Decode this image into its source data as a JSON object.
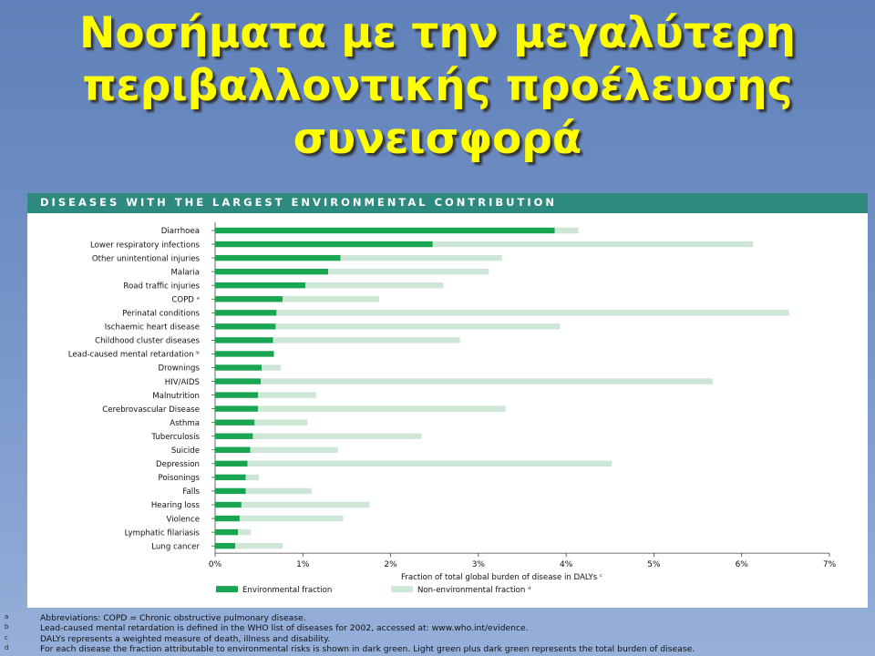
{
  "slide": {
    "title_lines": [
      "Νοσήματα με την μεγαλύτερη",
      "περιβαλλοντικής προέλευσης",
      "συνεισφορά"
    ]
  },
  "chart_data": {
    "type": "bar",
    "orientation": "horizontal",
    "stacked": true,
    "title": "DISEASES WITH THE LARGEST ENVIRONMENTAL CONTRIBUTION",
    "categories": [
      "Diarrhoea",
      "Lower respiratory infections",
      "Other unintentional injuries",
      "Malaria",
      "Road traffic injuries",
      "COPD ᵃ",
      "Perinatal conditions",
      "Ischaemic heart disease",
      "Childhood cluster diseases",
      "Lead-caused mental retardation ᵇ",
      "Drownings",
      "HIV/AIDS",
      "Malnutrition",
      "Cerebrovascular Disease",
      "Asthma",
      "Tuberculosis",
      "Suicide",
      "Depression",
      "Poisonings",
      "Falls",
      "Hearing loss",
      "Violence",
      "Lymphatic filariasis",
      "Lung cancer"
    ],
    "series": [
      {
        "name": "Environmental fraction",
        "color": "#1aa553",
        "values": [
          3.87,
          2.48,
          1.43,
          1.29,
          1.03,
          0.77,
          0.7,
          0.69,
          0.66,
          0.67,
          0.53,
          0.52,
          0.49,
          0.49,
          0.45,
          0.43,
          0.4,
          0.37,
          0.35,
          0.35,
          0.3,
          0.28,
          0.26,
          0.23
        ]
      },
      {
        "name": "Non-environmental fraction",
        "color": "#cde6d6",
        "values": [
          0.27,
          3.65,
          1.84,
          1.83,
          1.57,
          1.1,
          5.84,
          3.24,
          2.13,
          0.0,
          0.22,
          5.15,
          0.66,
          2.82,
          0.6,
          1.92,
          1.0,
          4.15,
          0.15,
          0.75,
          1.46,
          1.18,
          0.15,
          0.54
        ]
      }
    ],
    "xlim": [
      0,
      7
    ],
    "xticks": [
      "0%",
      "1%",
      "2%",
      "3%",
      "4%",
      "5%",
      "6%",
      "7%"
    ],
    "xlabel": "Fraction of total global burden of disease in DALYs ᶜ",
    "legend": [
      {
        "label": "Environmental fraction",
        "color": "#1aa553"
      },
      {
        "label": "Non-environmental fraction ᵈ",
        "color": "#cde6d6"
      }
    ],
    "legend_position": "bottom",
    "grid": false
  },
  "footnotes": [
    {
      "letter": "a",
      "text": "Abbreviations: COPD = Chronic obstructive pulmonary disease."
    },
    {
      "letter": "b",
      "text": "Lead-caused mental retardation is defined in the WHO list of diseases for 2002, accessed at: www.who.int/evidence."
    },
    {
      "letter": "c",
      "text": "DALYs represents a weighted measure of death, illness and disability."
    },
    {
      "letter": "d",
      "text": "For each disease the fraction attributable to environmental risks is shown in dark green. Light green plus dark green represents the total burden of disease."
    }
  ]
}
